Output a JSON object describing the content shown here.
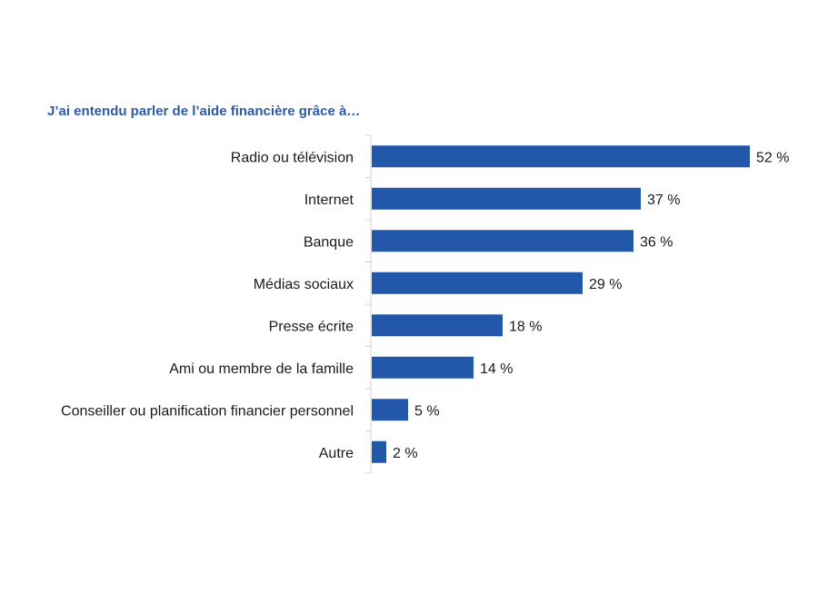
{
  "chart_data": {
    "type": "bar",
    "orientation": "horizontal",
    "title": "J’ai entendu parler de l’aide financière grâce à…",
    "categories": [
      "Radio ou télévision",
      "Internet",
      "Banque",
      "Médias sociaux",
      "Presse écrite",
      "Ami ou membre de la famille",
      "Conseiller ou planification financier personnel",
      "Autre"
    ],
    "values": [
      52,
      37,
      36,
      29,
      18,
      14,
      5,
      2
    ],
    "value_labels": [
      "52 %",
      "37 %",
      "36 %",
      "29 %",
      "18 %",
      "14 %",
      "5 %",
      "2 %"
    ],
    "xlim": [
      0,
      52
    ],
    "grid": false,
    "bar_color": "#2257AA",
    "title_color": "#2E5AA6"
  }
}
